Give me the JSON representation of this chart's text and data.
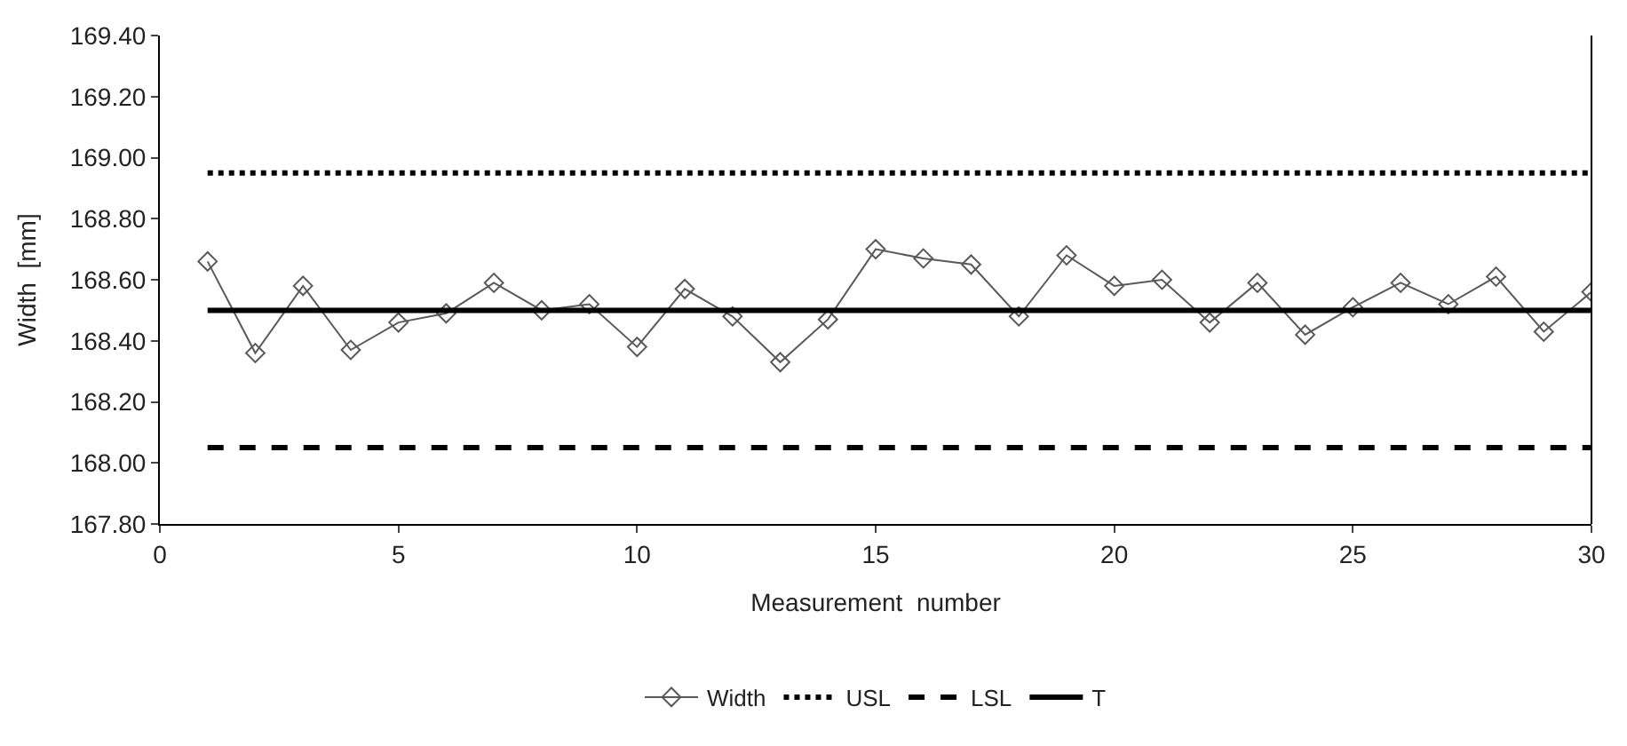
{
  "chart_data": {
    "type": "line",
    "xlabel": "Measurement  number",
    "ylabel": "Width  [mm]",
    "xlim": [
      0,
      30
    ],
    "xticks": [
      0,
      5,
      10,
      15,
      20,
      25,
      30
    ],
    "ylim": [
      167.8,
      169.4
    ],
    "yticks": [
      {
        "value": 167.8,
        "label": "167.80"
      },
      {
        "value": 168.0,
        "label": "168.00"
      },
      {
        "value": 168.2,
        "label": "168.20"
      },
      {
        "value": 168.4,
        "label": "168.40"
      },
      {
        "value": 168.6,
        "label": "168.60"
      },
      {
        "value": 168.8,
        "label": "168.80"
      },
      {
        "value": 169.0,
        "label": "169.00"
      },
      {
        "value": 169.2,
        "label": "169.20"
      },
      {
        "value": 169.4,
        "label": "169.40"
      }
    ],
    "legend": "bottom",
    "series": [
      {
        "name": "Width",
        "color": "#595959",
        "marker": "diamond",
        "line_style": "solid",
        "x": [
          1,
          2,
          3,
          4,
          5,
          6,
          7,
          8,
          9,
          10,
          11,
          12,
          13,
          14,
          15,
          16,
          17,
          18,
          19,
          20,
          21,
          22,
          23,
          24,
          25,
          26,
          27,
          28,
          29,
          30
        ],
        "values": [
          168.66,
          168.36,
          168.58,
          168.37,
          168.46,
          168.49,
          168.59,
          168.5,
          168.52,
          168.38,
          168.57,
          168.48,
          168.33,
          168.47,
          168.7,
          168.67,
          168.65,
          168.48,
          168.68,
          168.58,
          168.6,
          168.46,
          168.59,
          168.42,
          168.51,
          168.59,
          168.52,
          168.61,
          168.43,
          168.56
        ]
      },
      {
        "name": "USL",
        "color": "#000000",
        "marker": "none",
        "line_style": "dotted",
        "x": [
          1,
          30
        ],
        "values": [
          168.95,
          168.95
        ]
      },
      {
        "name": "LSL",
        "color": "#000000",
        "marker": "none",
        "line_style": "dashed",
        "x": [
          1,
          30
        ],
        "values": [
          168.05,
          168.05
        ]
      },
      {
        "name": "T",
        "color": "#000000",
        "marker": "none",
        "line_style": "solid",
        "x": [
          1,
          30
        ],
        "values": [
          168.5,
          168.5
        ]
      }
    ]
  }
}
